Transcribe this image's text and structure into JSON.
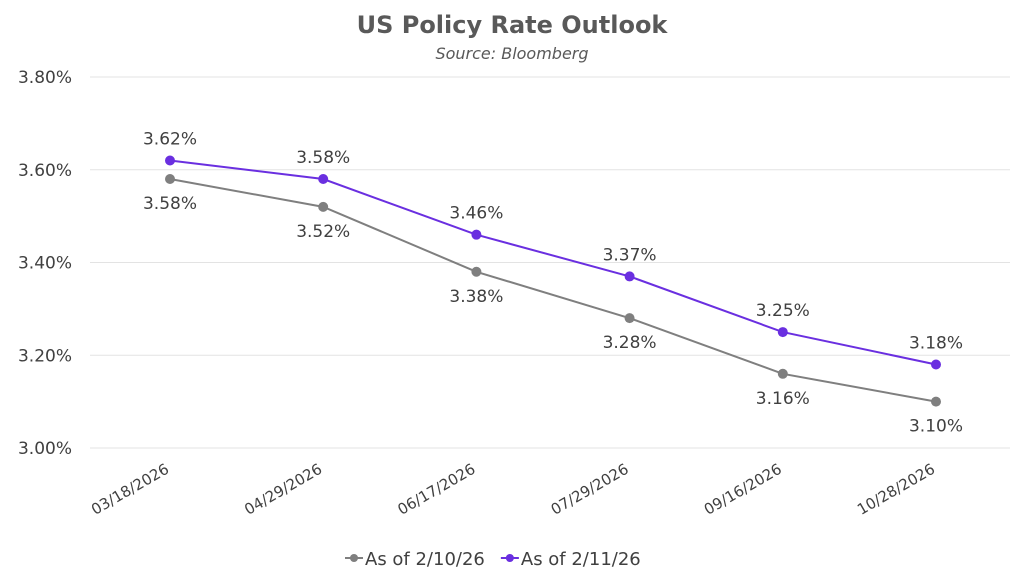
{
  "chart_data": {
    "type": "line",
    "title": "US Policy Rate Outlook",
    "subtitle": "Source: Bloomberg",
    "xlabel": "",
    "ylabel": "",
    "categories": [
      "03/18/2026",
      "04/29/2026",
      "06/17/2026",
      "07/29/2026",
      "09/16/2026",
      "10/28/2026"
    ],
    "ylim": [
      3.0,
      3.8
    ],
    "yticks": [
      3.0,
      3.2,
      3.4,
      3.6,
      3.8
    ],
    "ytick_labels": [
      "3.00%",
      "3.20%",
      "3.40%",
      "3.60%",
      "3.80%"
    ],
    "grid": true,
    "legend_position": "bottom",
    "series": [
      {
        "name": "As of 2/10/26",
        "color": "#7f7f7f",
        "label_position": "below",
        "values": [
          3.58,
          3.52,
          3.38,
          3.28,
          3.16,
          3.1
        ],
        "labels": [
          "3.58%",
          "3.52%",
          "3.38%",
          "3.28%",
          "3.16%",
          "3.10%"
        ]
      },
      {
        "name": "As of 2/11/26",
        "color": "#6a2fe0",
        "label_position": "above",
        "values": [
          3.62,
          3.58,
          3.46,
          3.37,
          3.25,
          3.18
        ],
        "labels": [
          "3.62%",
          "3.58%",
          "3.46%",
          "3.37%",
          "3.25%",
          "3.18%"
        ]
      }
    ]
  }
}
